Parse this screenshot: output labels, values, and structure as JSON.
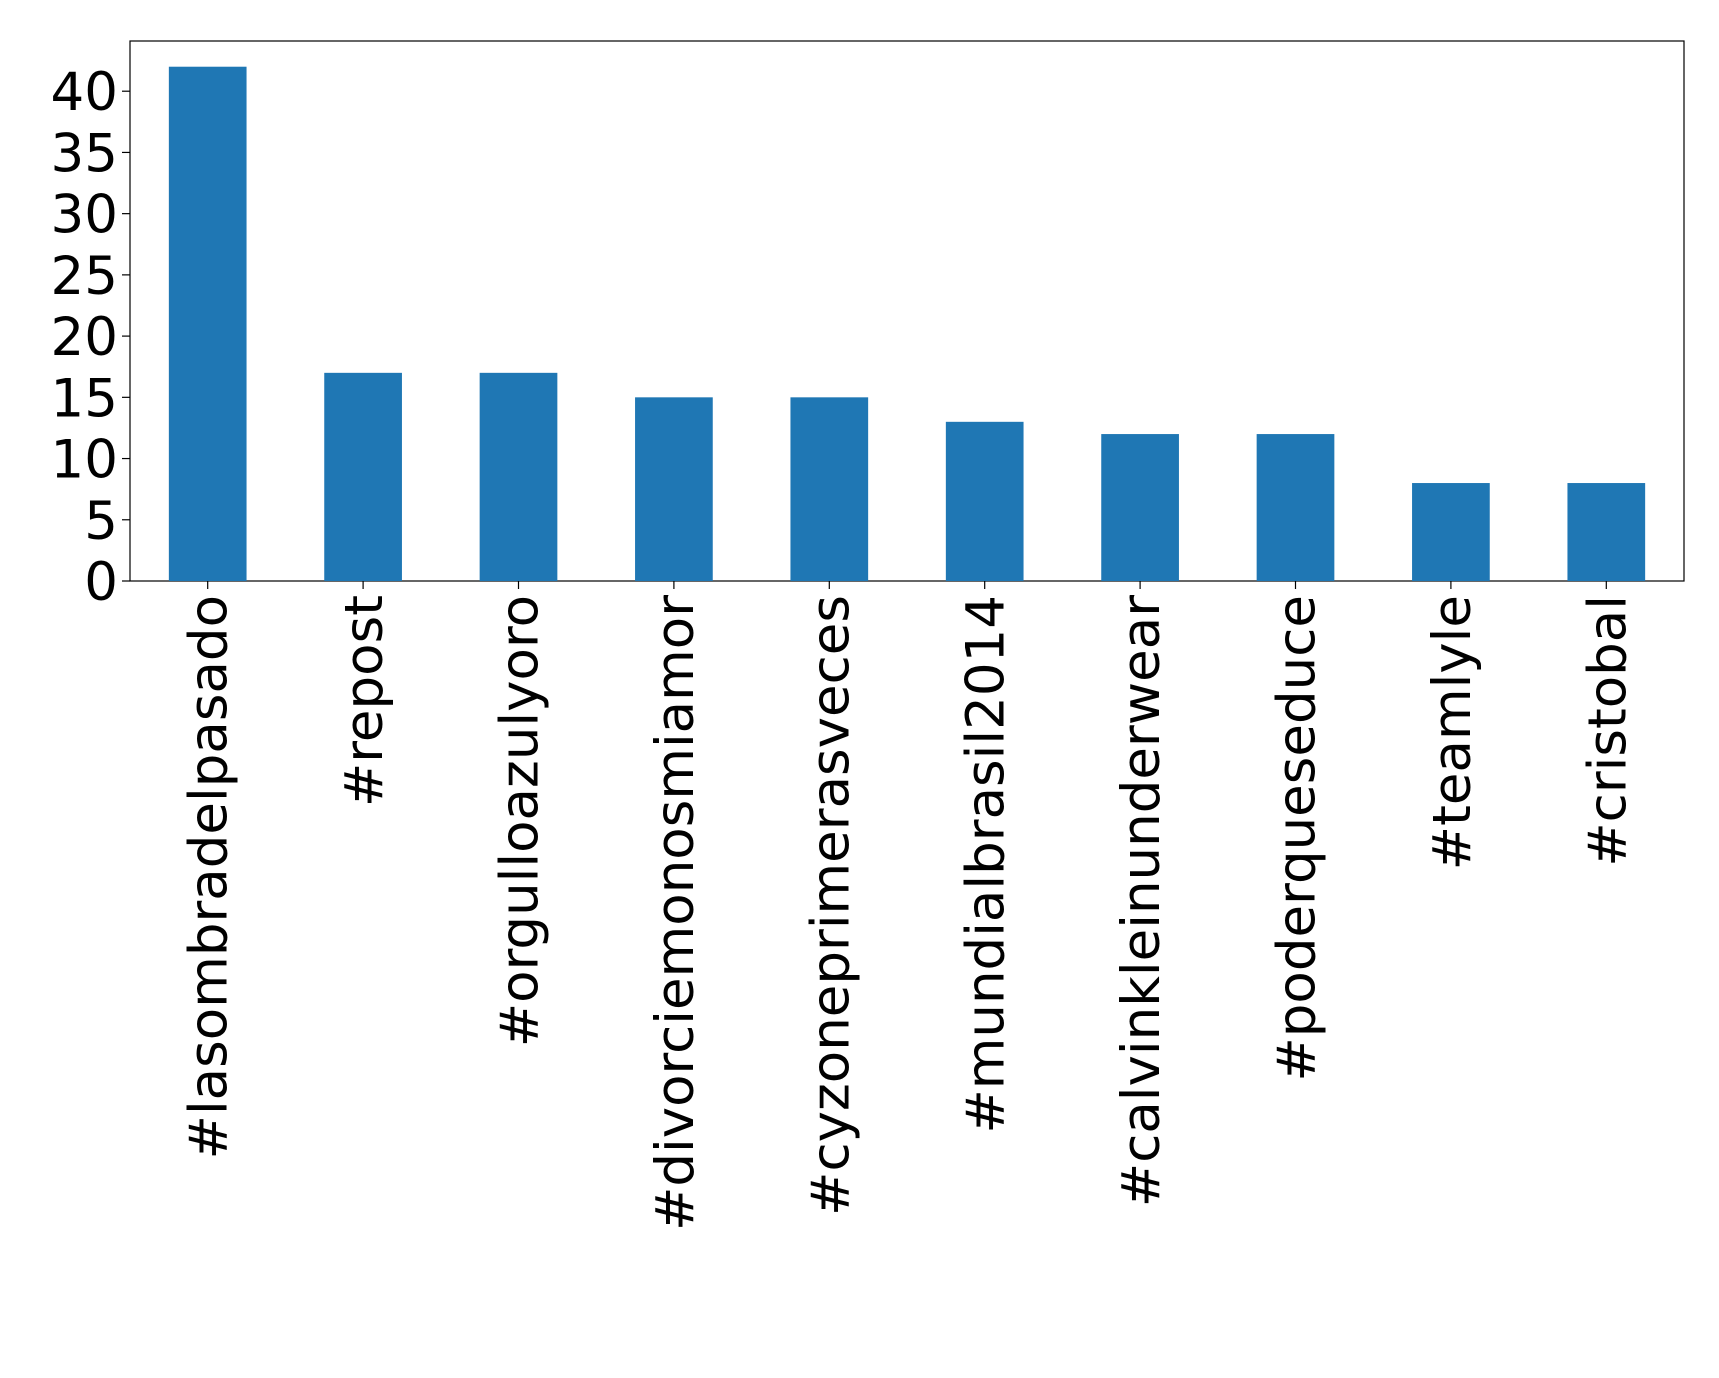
{
  "chart_data": {
    "type": "bar",
    "categories": [
      "#lasombradelpasado",
      "#repost",
      "#orgulloazulyoro",
      "#divorciemonosmiamor",
      "#cyzoneprimerasveces",
      "#mundialbrasil2014",
      "#calvinkleinunderwear",
      "#poderqueseduce",
      "#teamlyle",
      "#cristobal"
    ],
    "values": [
      42,
      17,
      17,
      15,
      15,
      13,
      12,
      12,
      8,
      8
    ],
    "color": "#1f77b4",
    "ylim": [
      0,
      44.1
    ],
    "yticks": [
      0,
      5,
      10,
      15,
      20,
      25,
      30,
      35,
      40
    ],
    "grid": false
  }
}
